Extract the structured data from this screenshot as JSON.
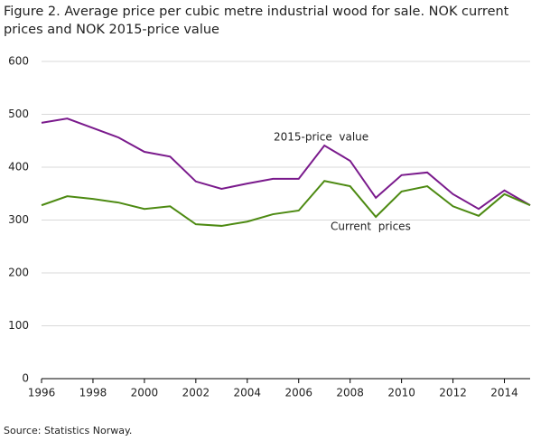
{
  "chart_data": {
    "type": "line",
    "title": "Figure 2. Average price per cubic metre industrial wood for sale. NOK current prices and NOK 2015-price value",
    "source": "Source: Statistics Norway.",
    "x": [
      1996,
      1997,
      1998,
      1999,
      2000,
      2001,
      2002,
      2003,
      2004,
      2005,
      2006,
      2007,
      2008,
      2009,
      2010,
      2011,
      2012,
      2013,
      2014,
      2015
    ],
    "series": [
      {
        "name": "2015-price  value",
        "color": "#7a1a8c",
        "values": [
          484,
          492,
          474,
          456,
          429,
          420,
          373,
          359,
          369,
          378,
          378,
          441,
          412,
          342,
          385,
          390,
          349,
          321,
          356,
          328
        ]
      },
      {
        "name": "Current  prices",
        "color": "#4d8a12",
        "values": [
          328,
          345,
          340,
          333,
          321,
          326,
          292,
          289,
          297,
          311,
          318,
          374,
          364,
          306,
          354,
          364,
          326,
          308,
          349,
          328
        ]
      }
    ],
    "xlim": [
      1996,
      2015
    ],
    "xticks": [
      1996,
      1998,
      2000,
      2002,
      2004,
      2006,
      2008,
      2010,
      2012,
      2014
    ],
    "ylim": [
      0,
      600
    ],
    "yticks": [
      0,
      100,
      200,
      300,
      400,
      500,
      600
    ],
    "grid": true
  }
}
